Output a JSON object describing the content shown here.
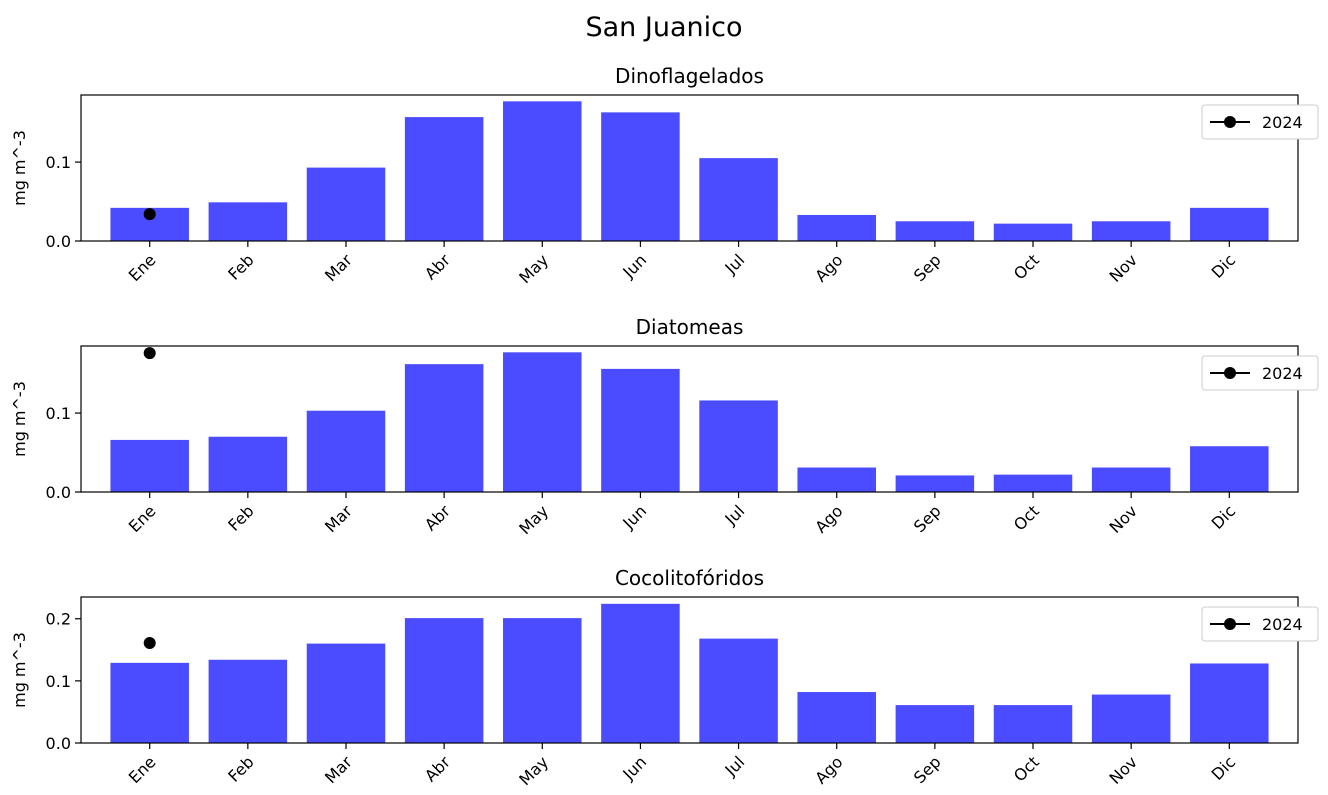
{
  "figure": {
    "title": "San Juanico"
  },
  "colors": {
    "bar": "#4b4bff",
    "marker": "#000000"
  },
  "chart_data": [
    {
      "type": "bar",
      "title": "Dinoflagelados",
      "ylabel": "mg m^-3",
      "categories": [
        "Ene",
        "Feb",
        "Mar",
        "Abr",
        "May",
        "Jun",
        "Jul",
        "Ago",
        "Sep",
        "Oct",
        "Nov",
        "Dic"
      ],
      "values": [
        0.042,
        0.049,
        0.093,
        0.157,
        0.177,
        0.163,
        0.105,
        0.033,
        0.025,
        0.022,
        0.025,
        0.042
      ],
      "ylim": [
        0,
        0.185
      ],
      "yticks": [
        0.0,
        0.1
      ],
      "ytick_labels": [
        "0.0",
        "0.1"
      ],
      "overlay": {
        "name": "2024",
        "type": "line-marker",
        "points": [
          {
            "x": "Ene",
            "y": 0.034
          }
        ]
      },
      "legend": {
        "entries": [
          "2024"
        ],
        "position": "upper-right"
      }
    },
    {
      "type": "bar",
      "title": "Diatomeas",
      "ylabel": "mg m^-3",
      "categories": [
        "Ene",
        "Feb",
        "Mar",
        "Abr",
        "May",
        "Jun",
        "Jul",
        "Ago",
        "Sep",
        "Oct",
        "Nov",
        "Dic"
      ],
      "values": [
        0.066,
        0.07,
        0.103,
        0.162,
        0.177,
        0.156,
        0.116,
        0.031,
        0.021,
        0.022,
        0.031,
        0.058
      ],
      "ylim": [
        0,
        0.185
      ],
      "yticks": [
        0.0,
        0.1
      ],
      "ytick_labels": [
        "0.0",
        "0.1"
      ],
      "overlay": {
        "name": "2024",
        "type": "line-marker",
        "points": [
          {
            "x": "Ene",
            "y": 0.176
          }
        ]
      },
      "legend": {
        "entries": [
          "2024"
        ],
        "position": "upper-right"
      }
    },
    {
      "type": "bar",
      "title": "Cocolitofóridos",
      "ylabel": "mg m^-3",
      "categories": [
        "Ene",
        "Feb",
        "Mar",
        "Abr",
        "May",
        "Jun",
        "Jul",
        "Ago",
        "Sep",
        "Oct",
        "Nov",
        "Dic"
      ],
      "values": [
        0.129,
        0.134,
        0.16,
        0.201,
        0.201,
        0.224,
        0.168,
        0.082,
        0.061,
        0.061,
        0.078,
        0.128
      ],
      "ylim": [
        0,
        0.235
      ],
      "yticks": [
        0.0,
        0.1,
        0.2
      ],
      "ytick_labels": [
        "0.0",
        "0.1",
        "0.2"
      ],
      "overlay": {
        "name": "2024",
        "type": "line-marker",
        "points": [
          {
            "x": "Ene",
            "y": 0.161
          }
        ]
      },
      "legend": {
        "entries": [
          "2024"
        ],
        "position": "upper-right"
      }
    }
  ]
}
